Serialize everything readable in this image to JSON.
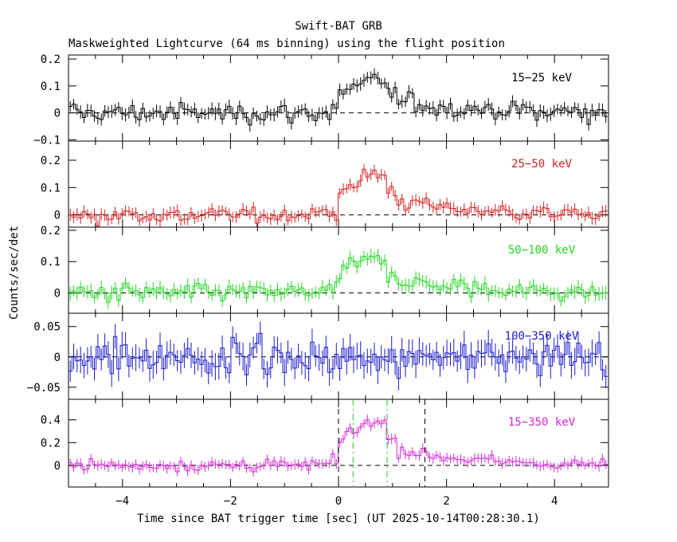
{
  "chart_data": {
    "type": "line",
    "title": "Swift-BAT GRB",
    "subtitle": "Maskweighted Lightcurve (64 ms binning) using the flight position",
    "xlabel": "Time since BAT trigger time [sec] (UT 2025-10-14T00:28:30.1)",
    "ylabel": "Counts/sec/det",
    "xlim": [
      -5,
      5
    ],
    "xticks": [
      -4,
      -2,
      0,
      2,
      4
    ],
    "xtick_labels": [
      "−4",
      "−2",
      "0",
      "2",
      "4"
    ],
    "bin_width": 0.064,
    "colors": {
      "black": "#000000",
      "red": "#d62020",
      "green": "#22d522",
      "blue": "#1a1ad0",
      "magenta": "#d62ad6"
    },
    "panels": [
      {
        "name": "15-25 keV",
        "label": "15−25 keV",
        "color": "#000000",
        "ylim": [
          -0.105,
          0.215
        ],
        "yticks": [
          -0.1,
          0,
          0.1,
          0.2
        ],
        "ytick_labels": [
          "−0.1",
          "0",
          "0.1",
          "0.2"
        ],
        "peak": 0.12,
        "noise": 0.028,
        "err": 0.022
      },
      {
        "name": "25-50 keV",
        "label": "25−50 keV",
        "color": "#d62020",
        "ylim": [
          -0.045,
          0.27
        ],
        "yticks": [
          0,
          0.1,
          0.2
        ],
        "ytick_labels": [
          "0",
          "0.1",
          "0.2"
        ],
        "peak": 0.15,
        "noise": 0.022,
        "err": 0.02
      },
      {
        "name": "50-100 keV",
        "label": "50−100 keV",
        "color": "#22d522",
        "ylim": [
          -0.065,
          0.21
        ],
        "yticks": [
          0,
          0.1,
          0.2
        ],
        "ytick_labels": [
          "0",
          "0.1",
          "0.2"
        ],
        "peak": 0.11,
        "noise": 0.022,
        "err": 0.02
      },
      {
        "name": "100-350 keV",
        "label": "100−350 keV",
        "color": "#1a1ad0",
        "ylim": [
          -0.07,
          0.072
        ],
        "yticks": [
          -0.05,
          0,
          0.05
        ],
        "ytick_labels": [
          "−0.05",
          "0",
          "0.05"
        ],
        "peak": 0.0,
        "noise": 0.02,
        "err": 0.02
      },
      {
        "name": "15-350 keV",
        "label": "15−350 keV",
        "color": "#d62ad6",
        "ylim": [
          -0.19,
          0.58
        ],
        "yticks": [
          0,
          0.2,
          0.4
        ],
        "ytick_labels": [
          "0",
          "0.2",
          "0.4"
        ],
        "peak": 0.4,
        "noise": 0.04,
        "err": 0.04,
        "markers": [
          {
            "x": 0.0,
            "color": "#000000",
            "style": "dash"
          },
          {
            "x": 0.27,
            "color": "#22c022",
            "style": "dashdot"
          },
          {
            "x": 0.9,
            "color": "#22c022",
            "style": "dashdot"
          },
          {
            "x": 1.6,
            "color": "#000000",
            "style": "dash"
          }
        ]
      }
    ]
  }
}
